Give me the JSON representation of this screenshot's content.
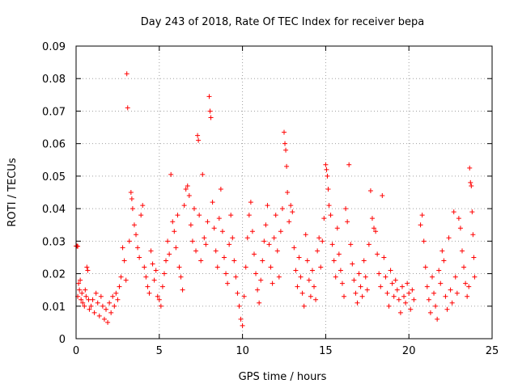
{
  "chart_data": {
    "type": "scatter",
    "title": "Day 243 of 2018, Rate Of TEC Index for receiver bepa",
    "xlabel": "GPS time / hours",
    "ylabel": "ROTI / TECUs",
    "xlim": [
      0,
      25
    ],
    "ylim": [
      0,
      0.09
    ],
    "xticks": [
      0,
      5,
      10,
      15,
      20,
      25
    ],
    "yticks": [
      0,
      0.01,
      0.02,
      0.03,
      0.04,
      0.05,
      0.06,
      0.07,
      0.08,
      0.09
    ],
    "xtick_labels": [
      "0",
      "5",
      "10",
      "15",
      "20",
      "25"
    ],
    "ytick_labels": [
      "0",
      "0.01",
      "0.02",
      "0.03",
      "0.04",
      "0.05",
      "0.06",
      "0.07",
      "0.08",
      "0.09"
    ],
    "grid": true,
    "marker": "+",
    "color": "#ff0000",
    "series": [
      {
        "name": "ROTI",
        "note": "dense point cloud; representative points as read from the plot",
        "points": [
          [
            0.0,
            0.0285
          ],
          [
            0.05,
            0.0285
          ],
          [
            0.1,
            0.0284
          ],
          [
            0.1,
            0.013
          ],
          [
            0.15,
            0.017
          ],
          [
            0.2,
            0.015
          ],
          [
            0.25,
            0.018
          ],
          [
            0.3,
            0.012
          ],
          [
            0.35,
            0.014
          ],
          [
            0.4,
            0.011
          ],
          [
            0.5,
            0.01
          ],
          [
            0.55,
            0.015
          ],
          [
            0.6,
            0.013
          ],
          [
            0.65,
            0.022
          ],
          [
            0.7,
            0.021
          ],
          [
            0.75,
            0.012
          ],
          [
            0.8,
            0.009
          ],
          [
            0.9,
            0.01
          ],
          [
            1.0,
            0.012
          ],
          [
            1.1,
            0.008
          ],
          [
            1.2,
            0.014
          ],
          [
            1.3,
            0.011
          ],
          [
            1.4,
            0.007
          ],
          [
            1.5,
            0.013
          ],
          [
            1.6,
            0.01
          ],
          [
            1.7,
            0.006
          ],
          [
            1.8,
            0.009
          ],
          [
            1.9,
            0.005
          ],
          [
            2.0,
            0.011
          ],
          [
            2.1,
            0.008
          ],
          [
            2.2,
            0.013
          ],
          [
            2.3,
            0.01
          ],
          [
            2.4,
            0.014
          ],
          [
            2.5,
            0.012
          ],
          [
            2.6,
            0.016
          ],
          [
            2.7,
            0.019
          ],
          [
            2.8,
            0.028
          ],
          [
            2.9,
            0.024
          ],
          [
            3.0,
            0.018
          ],
          [
            3.05,
            0.0815
          ],
          [
            3.1,
            0.071
          ],
          [
            3.2,
            0.03
          ],
          [
            3.3,
            0.045
          ],
          [
            3.35,
            0.043
          ],
          [
            3.4,
            0.04
          ],
          [
            3.5,
            0.035
          ],
          [
            3.6,
            0.032
          ],
          [
            3.7,
            0.028
          ],
          [
            3.8,
            0.025
          ],
          [
            3.9,
            0.038
          ],
          [
            4.0,
            0.041
          ],
          [
            4.1,
            0.022
          ],
          [
            4.2,
            0.019
          ],
          [
            4.3,
            0.016
          ],
          [
            4.4,
            0.014
          ],
          [
            4.5,
            0.027
          ],
          [
            4.6,
            0.023
          ],
          [
            4.7,
            0.018
          ],
          [
            4.8,
            0.021
          ],
          [
            4.9,
            0.013
          ],
          [
            5.0,
            0.012
          ],
          [
            5.1,
            0.01
          ],
          [
            5.2,
            0.016
          ],
          [
            5.3,
            0.02
          ],
          [
            5.4,
            0.024
          ],
          [
            5.5,
            0.03
          ],
          [
            5.6,
            0.026
          ],
          [
            5.7,
            0.0505
          ],
          [
            5.8,
            0.036
          ],
          [
            5.9,
            0.033
          ],
          [
            6.0,
            0.028
          ],
          [
            6.1,
            0.038
          ],
          [
            6.2,
            0.022
          ],
          [
            6.3,
            0.019
          ],
          [
            6.4,
            0.015
          ],
          [
            6.5,
            0.041
          ],
          [
            6.6,
            0.046
          ],
          [
            6.7,
            0.047
          ],
          [
            6.8,
            0.044
          ],
          [
            6.9,
            0.035
          ],
          [
            7.0,
            0.03
          ],
          [
            7.1,
            0.04
          ],
          [
            7.2,
            0.027
          ],
          [
            7.3,
            0.0625
          ],
          [
            7.35,
            0.061
          ],
          [
            7.4,
            0.038
          ],
          [
            7.5,
            0.024
          ],
          [
            7.6,
            0.0505
          ],
          [
            7.7,
            0.031
          ],
          [
            7.8,
            0.029
          ],
          [
            7.9,
            0.036
          ],
          [
            8.0,
            0.0745
          ],
          [
            8.05,
            0.07
          ],
          [
            8.1,
            0.068
          ],
          [
            8.2,
            0.042
          ],
          [
            8.3,
            0.034
          ],
          [
            8.4,
            0.027
          ],
          [
            8.5,
            0.022
          ],
          [
            8.6,
            0.037
          ],
          [
            8.7,
            0.046
          ],
          [
            8.8,
            0.033
          ],
          [
            8.9,
            0.025
          ],
          [
            9.0,
            0.02
          ],
          [
            9.1,
            0.017
          ],
          [
            9.2,
            0.029
          ],
          [
            9.3,
            0.038
          ],
          [
            9.4,
            0.031
          ],
          [
            9.5,
            0.024
          ],
          [
            9.6,
            0.019
          ],
          [
            9.7,
            0.014
          ],
          [
            9.8,
            0.01
          ],
          [
            9.9,
            0.006
          ],
          [
            10.0,
            0.004
          ],
          [
            10.1,
            0.013
          ],
          [
            10.2,
            0.022
          ],
          [
            10.3,
            0.031
          ],
          [
            10.4,
            0.038
          ],
          [
            10.5,
            0.042
          ],
          [
            10.6,
            0.033
          ],
          [
            10.7,
            0.026
          ],
          [
            10.8,
            0.02
          ],
          [
            10.9,
            0.015
          ],
          [
            11.0,
            0.011
          ],
          [
            11.1,
            0.018
          ],
          [
            11.2,
            0.024
          ],
          [
            11.3,
            0.03
          ],
          [
            11.4,
            0.035
          ],
          [
            11.5,
            0.041
          ],
          [
            11.6,
            0.029
          ],
          [
            11.7,
            0.022
          ],
          [
            11.8,
            0.017
          ],
          [
            11.9,
            0.031
          ],
          [
            12.0,
            0.038
          ],
          [
            12.1,
            0.027
          ],
          [
            12.2,
            0.019
          ],
          [
            12.3,
            0.033
          ],
          [
            12.4,
            0.04
          ],
          [
            12.5,
            0.0635
          ],
          [
            12.55,
            0.06
          ],
          [
            12.6,
            0.058
          ],
          [
            12.65,
            0.053
          ],
          [
            12.7,
            0.045
          ],
          [
            12.8,
            0.036
          ],
          [
            12.9,
            0.041
          ],
          [
            13.0,
            0.039
          ],
          [
            13.1,
            0.028
          ],
          [
            13.2,
            0.021
          ],
          [
            13.3,
            0.016
          ],
          [
            13.4,
            0.025
          ],
          [
            13.5,
            0.019
          ],
          [
            13.6,
            0.014
          ],
          [
            13.7,
            0.01
          ],
          [
            13.8,
            0.032
          ],
          [
            13.9,
            0.024
          ],
          [
            14.0,
            0.018
          ],
          [
            14.1,
            0.013
          ],
          [
            14.2,
            0.021
          ],
          [
            14.3,
            0.016
          ],
          [
            14.4,
            0.012
          ],
          [
            14.5,
            0.027
          ],
          [
            14.6,
            0.031
          ],
          [
            14.7,
            0.022
          ],
          [
            14.8,
            0.03
          ],
          [
            14.9,
            0.037
          ],
          [
            15.0,
            0.0535
          ],
          [
            15.05,
            0.052
          ],
          [
            15.1,
            0.05
          ],
          [
            15.15,
            0.046
          ],
          [
            15.2,
            0.041
          ],
          [
            15.3,
            0.038
          ],
          [
            15.4,
            0.029
          ],
          [
            15.5,
            0.024
          ],
          [
            15.6,
            0.019
          ],
          [
            15.7,
            0.034
          ],
          [
            15.8,
            0.026
          ],
          [
            15.9,
            0.021
          ],
          [
            16.0,
            0.017
          ],
          [
            16.1,
            0.013
          ],
          [
            16.2,
            0.04
          ],
          [
            16.3,
            0.036
          ],
          [
            16.4,
            0.0535
          ],
          [
            16.5,
            0.029
          ],
          [
            16.6,
            0.023
          ],
          [
            16.7,
            0.018
          ],
          [
            16.8,
            0.014
          ],
          [
            16.9,
            0.011
          ],
          [
            17.0,
            0.02
          ],
          [
            17.1,
            0.016
          ],
          [
            17.2,
            0.013
          ],
          [
            17.3,
            0.024
          ],
          [
            17.4,
            0.019
          ],
          [
            17.5,
            0.015
          ],
          [
            17.6,
            0.029
          ],
          [
            17.7,
            0.0455
          ],
          [
            17.8,
            0.037
          ],
          [
            17.9,
            0.034
          ],
          [
            18.0,
            0.033
          ],
          [
            18.1,
            0.026
          ],
          [
            18.2,
            0.02
          ],
          [
            18.3,
            0.016
          ],
          [
            18.4,
            0.044
          ],
          [
            18.5,
            0.025
          ],
          [
            18.6,
            0.019
          ],
          [
            18.7,
            0.014
          ],
          [
            18.8,
            0.01
          ],
          [
            18.9,
            0.021
          ],
          [
            19.0,
            0.017
          ],
          [
            19.1,
            0.013
          ],
          [
            19.2,
            0.018
          ],
          [
            19.3,
            0.015
          ],
          [
            19.4,
            0.012
          ],
          [
            19.5,
            0.008
          ],
          [
            19.6,
            0.016
          ],
          [
            19.7,
            0.013
          ],
          [
            19.8,
            0.011
          ],
          [
            19.9,
            0.017
          ],
          [
            20.0,
            0.014
          ],
          [
            20.1,
            0.009
          ],
          [
            20.2,
            0.015
          ],
          [
            20.3,
            0.012
          ],
          [
            20.7,
            0.035
          ],
          [
            20.8,
            0.038
          ],
          [
            20.9,
            0.03
          ],
          [
            21.0,
            0.022
          ],
          [
            21.1,
            0.016
          ],
          [
            21.2,
            0.012
          ],
          [
            21.3,
            0.008
          ],
          [
            21.4,
            0.019
          ],
          [
            21.5,
            0.014
          ],
          [
            21.6,
            0.01
          ],
          [
            21.7,
            0.006
          ],
          [
            21.8,
            0.021
          ],
          [
            21.9,
            0.017
          ],
          [
            22.0,
            0.027
          ],
          [
            22.1,
            0.024
          ],
          [
            22.2,
            0.013
          ],
          [
            22.3,
            0.009
          ],
          [
            22.4,
            0.031
          ],
          [
            22.5,
            0.015
          ],
          [
            22.6,
            0.011
          ],
          [
            22.7,
            0.039
          ],
          [
            22.8,
            0.019
          ],
          [
            22.9,
            0.014
          ],
          [
            23.0,
            0.037
          ],
          [
            23.1,
            0.034
          ],
          [
            23.2,
            0.027
          ],
          [
            23.3,
            0.022
          ],
          [
            23.4,
            0.017
          ],
          [
            23.5,
            0.013
          ],
          [
            23.6,
            0.016
          ],
          [
            23.65,
            0.0525
          ],
          [
            23.7,
            0.048
          ],
          [
            23.75,
            0.047
          ],
          [
            23.8,
            0.039
          ],
          [
            23.85,
            0.032
          ],
          [
            23.9,
            0.025
          ],
          [
            23.95,
            0.019
          ]
        ]
      }
    ]
  }
}
